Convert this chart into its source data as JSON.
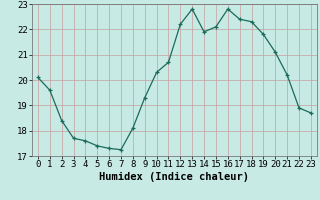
{
  "x": [
    0,
    1,
    2,
    3,
    4,
    5,
    6,
    7,
    8,
    9,
    10,
    11,
    12,
    13,
    14,
    15,
    16,
    17,
    18,
    19,
    20,
    21,
    22,
    23
  ],
  "y": [
    20.1,
    19.6,
    18.4,
    17.7,
    17.6,
    17.4,
    17.3,
    17.25,
    18.1,
    19.3,
    20.3,
    20.7,
    22.2,
    22.8,
    21.9,
    22.1,
    22.8,
    22.4,
    22.3,
    21.8,
    21.1,
    20.2,
    18.9,
    18.7
  ],
  "xlabel": "Humidex (Indice chaleur)",
  "xlim": [
    -0.5,
    23.5
  ],
  "ylim": [
    17.0,
    23.0
  ],
  "yticks": [
    17,
    18,
    19,
    20,
    21,
    22,
    23
  ],
  "xticks": [
    0,
    1,
    2,
    3,
    4,
    5,
    6,
    7,
    8,
    9,
    10,
    11,
    12,
    13,
    14,
    15,
    16,
    17,
    18,
    19,
    20,
    21,
    22,
    23
  ],
  "line_color": "#1a6b5a",
  "marker": "+",
  "marker_size": 3,
  "bg_color": "#c8eae5",
  "grid_color_x": "#c4a0a0",
  "grid_color_y": "#c4a0a0",
  "tick_fontsize": 6.5,
  "xlabel_fontsize": 7.5
}
